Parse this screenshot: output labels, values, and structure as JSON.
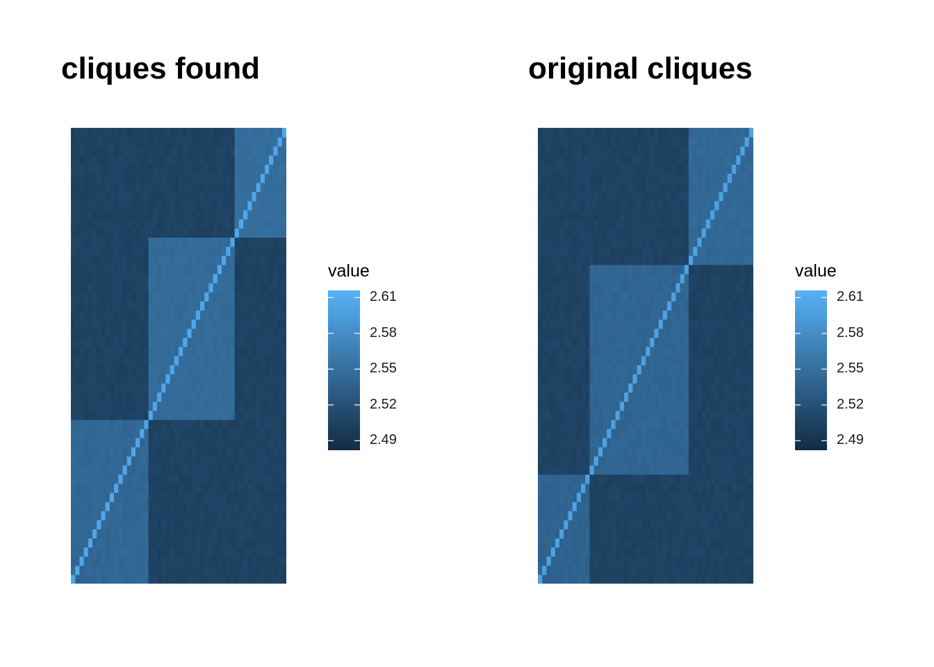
{
  "chart_data": [
    {
      "type": "heatmap",
      "title": "cliques found",
      "n": 50,
      "blocks": [
        {
          "start": 0,
          "end": 18,
          "value": 2.542
        },
        {
          "start": 18,
          "end": 38,
          "value": 2.546
        },
        {
          "start": 38,
          "end": 50,
          "value": 2.548
        }
      ],
      "off_block_value": 2.505,
      "diagonal_value": 2.605,
      "legend": {
        "title": "value",
        "ticks": [
          2.61,
          2.58,
          2.55,
          2.52,
          2.49
        ],
        "range": [
          2.482,
          2.616
        ]
      },
      "colors": {
        "low": "#132B43",
        "high": "#56B1F7"
      }
    },
    {
      "type": "heatmap",
      "title": "original cliques",
      "n": 50,
      "blocks": [
        {
          "start": 0,
          "end": 12,
          "value": 2.538
        },
        {
          "start": 12,
          "end": 35,
          "value": 2.54
        },
        {
          "start": 35,
          "end": 50,
          "value": 2.543
        }
      ],
      "off_block_value": 2.505,
      "diagonal_value": 2.6,
      "legend": {
        "title": "value",
        "ticks": [
          2.61,
          2.58,
          2.55,
          2.52,
          2.49
        ],
        "range": [
          2.482,
          2.616
        ]
      },
      "colors": {
        "low": "#132B43",
        "high": "#56B1F7"
      }
    }
  ]
}
